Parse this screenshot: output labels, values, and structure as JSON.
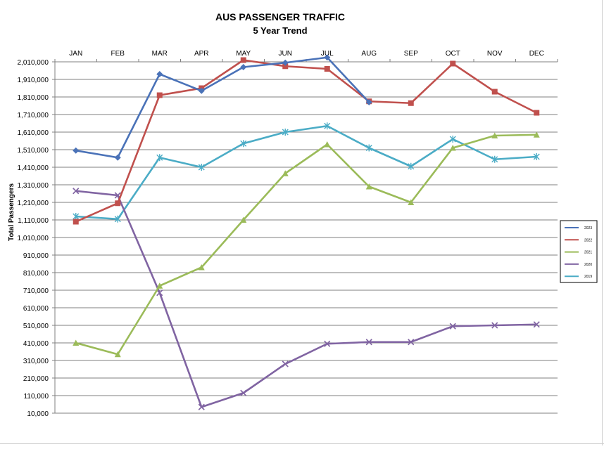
{
  "chart_data": {
    "type": "line",
    "title": "AUS PASSENGER TRAFFIC",
    "subtitle": "5 Year Trend",
    "ylabel": "Total Passengers",
    "xlabel": "",
    "x_axis_position": "top",
    "categories": [
      "JAN",
      "FEB",
      "MAR",
      "APR",
      "MAY",
      "JUN",
      "JUL",
      "AUG",
      "SEP",
      "OCT",
      "NOV",
      "DEC"
    ],
    "ylim": [
      10000,
      2010000
    ],
    "yticks": [
      10000,
      110000,
      210000,
      310000,
      410000,
      510000,
      610000,
      710000,
      810000,
      910000,
      1010000,
      1110000,
      1210000,
      1310000,
      1410000,
      1510000,
      1610000,
      1710000,
      1810000,
      1910000,
      2010000
    ],
    "ytick_labels": [
      "10,000",
      "110,000",
      "210,000",
      "310,000",
      "410,000",
      "510,000",
      "610,000",
      "710,000",
      "810,000",
      "910,000",
      "1,010,000",
      "1,110,000",
      "1,210,000",
      "1,310,000",
      "1,410,000",
      "1,510,000",
      "1,610,000",
      "1,710,000",
      "1,810,000",
      "1,910,000",
      "2,010,000"
    ],
    "grid": true,
    "legend_position": "right",
    "series": [
      {
        "name": "2023",
        "color": "#4a72b8",
        "marker": "diamond",
        "values": [
          1505000,
          1465000,
          1940000,
          1845000,
          1980000,
          2005000,
          2035000,
          1780000,
          null,
          null,
          null,
          null
        ]
      },
      {
        "name": "2022",
        "color": "#c0504d",
        "marker": "square",
        "values": [
          1100000,
          1205000,
          1820000,
          1860000,
          2020000,
          1985000,
          1970000,
          1785000,
          1775000,
          2000000,
          1840000,
          1720000
        ]
      },
      {
        "name": "2021",
        "color": "#9bbb59",
        "marker": "triangle",
        "values": [
          410000,
          345000,
          735000,
          840000,
          1110000,
          1375000,
          1540000,
          1300000,
          1210000,
          1520000,
          1590000,
          1595000
        ]
      },
      {
        "name": "2020",
        "color": "#8064a2",
        "marker": "x",
        "values": [
          1275000,
          1250000,
          695000,
          45000,
          125000,
          290000,
          405000,
          415000,
          415000,
          505000,
          510000,
          515000
        ]
      },
      {
        "name": "2019",
        "color": "#4bacc6",
        "marker": "star",
        "values": [
          1130000,
          1115000,
          1465000,
          1410000,
          1545000,
          1610000,
          1645000,
          1520000,
          1415000,
          1570000,
          1455000,
          1470000
        ]
      }
    ]
  }
}
